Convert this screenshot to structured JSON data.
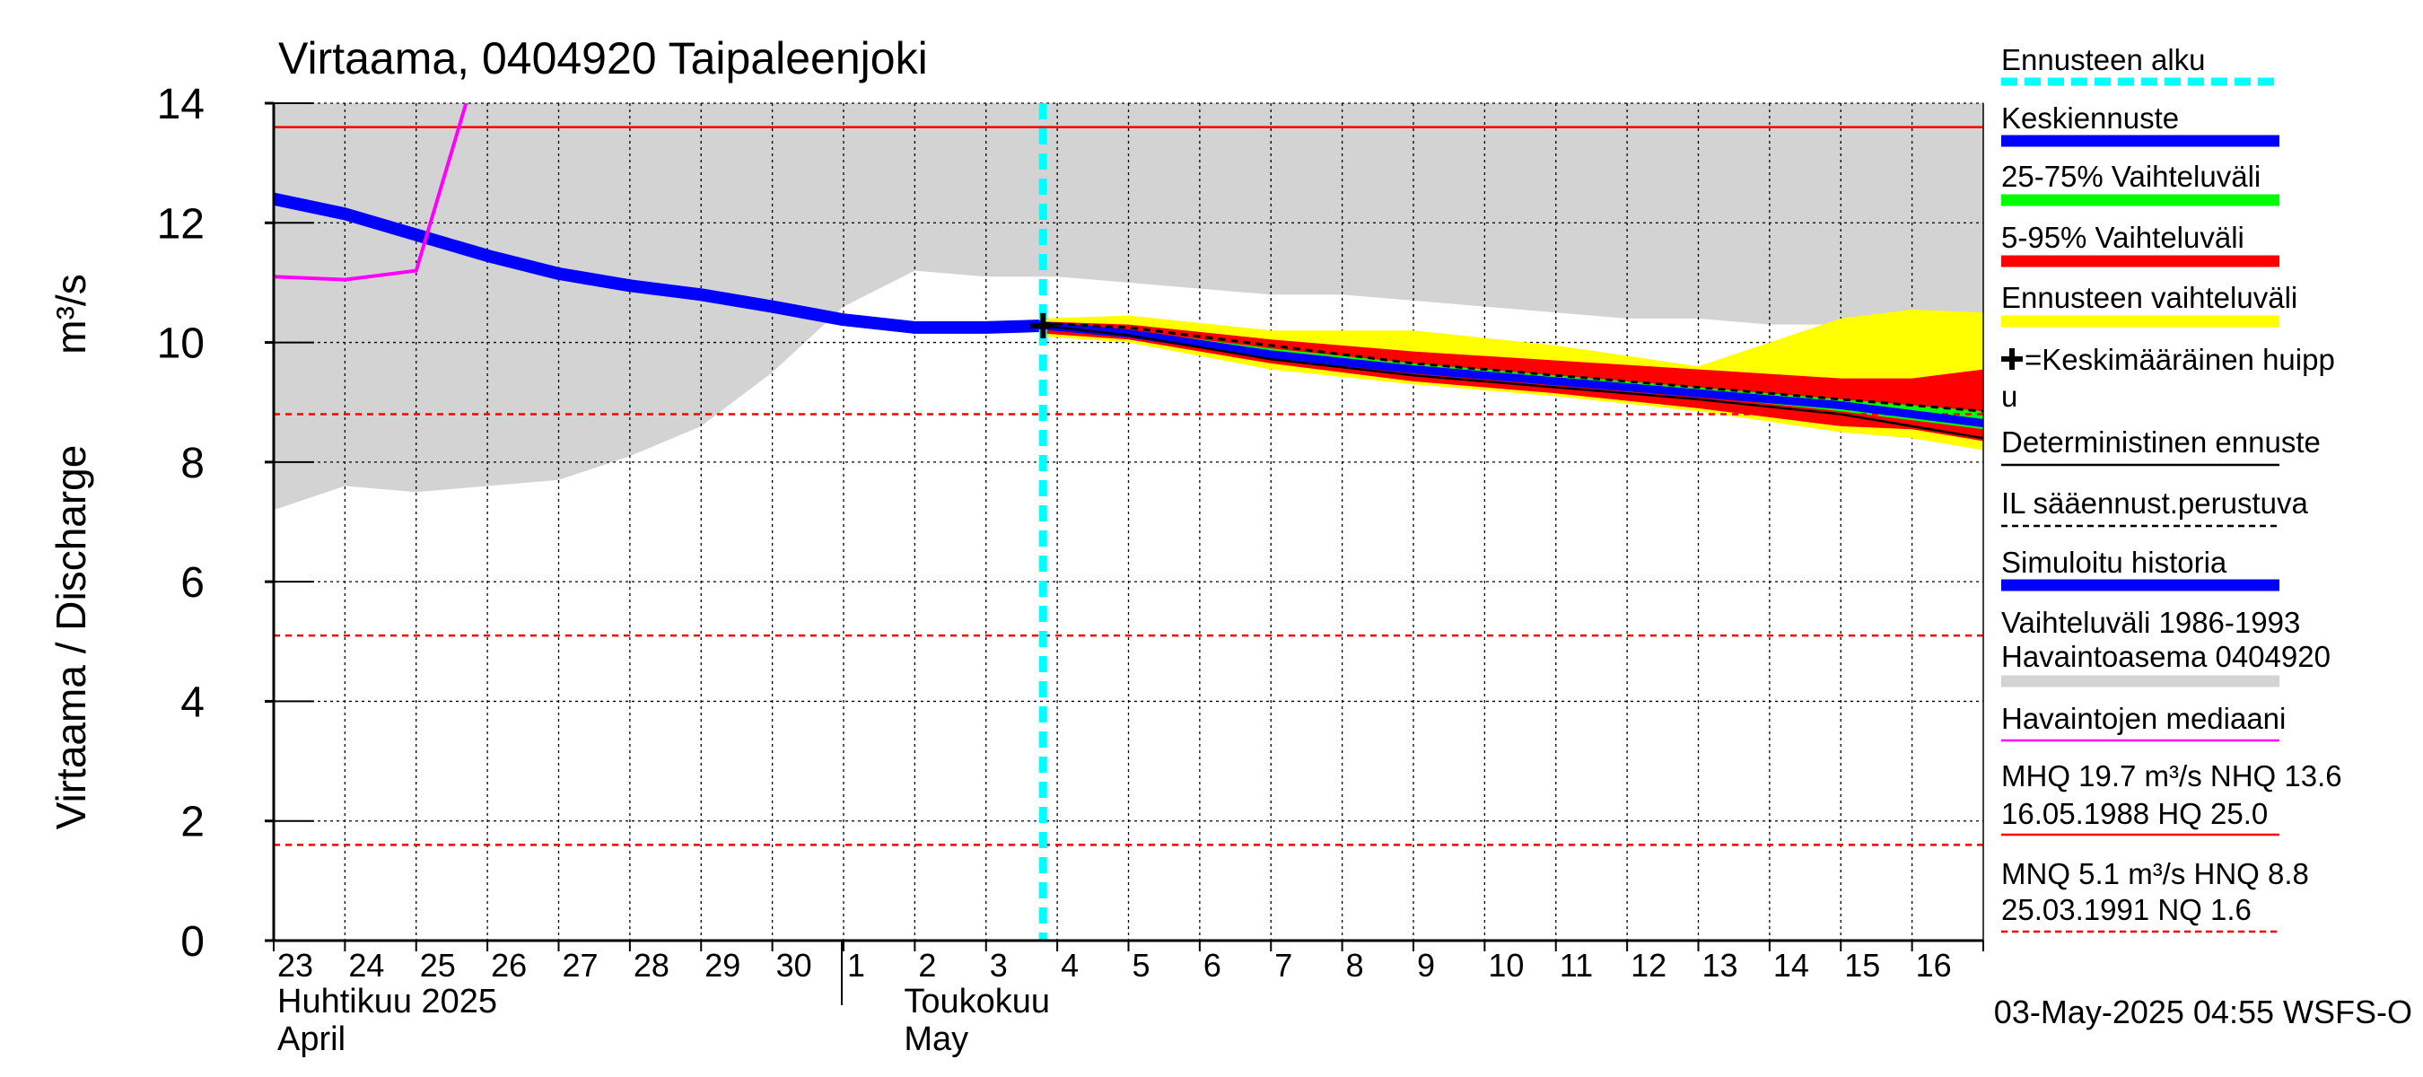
{
  "chart_data": {
    "type": "area",
    "title": "Virtaama, 0404920 Taipaleenjoki",
    "ylabel": "Virtaama / Discharge",
    "yunit": "m³/s",
    "ylim": [
      0,
      14
    ],
    "yticks": [
      "0",
      "2",
      "4",
      "6",
      "8",
      "10",
      "12",
      "14"
    ],
    "x_day_labels": [
      "23",
      "24",
      "25",
      "26",
      "27",
      "28",
      "29",
      "30",
      "1",
      "2",
      "3",
      "4",
      "5",
      "6",
      "7",
      "8",
      "9",
      "10",
      "11",
      "12",
      "13",
      "14",
      "15",
      "16"
    ],
    "x_month_labels": [
      {
        "fi": "Huhtikuu  2025",
        "en": "April"
      },
      {
        "fi": "Toukokuu",
        "en": "May"
      }
    ],
    "forecast_start_day": 10.8,
    "reference_lines": {
      "nhq": 13.6,
      "hnq": 8.8,
      "mnq": 5.1,
      "nq": 1.6
    },
    "history_band": {
      "x": [
        0,
        1,
        2,
        3,
        4,
        5,
        6,
        7,
        8,
        9,
        10,
        11,
        12,
        13,
        14,
        15,
        16,
        17,
        18,
        19,
        20,
        21,
        22,
        23,
        24
      ],
      "low": [
        7.2,
        7.6,
        7.5,
        7.6,
        7.7,
        8.1,
        8.6,
        9.5,
        10.6,
        11.2,
        11.1,
        11.1,
        11.0,
        10.9,
        10.8,
        10.8,
        10.7,
        10.6,
        10.5,
        10.4,
        10.4,
        10.3,
        10.3,
        10.3,
        10.3
      ],
      "high": [
        14,
        14,
        14,
        14,
        14,
        14,
        14,
        14,
        14,
        14,
        14,
        14,
        14,
        14,
        14,
        14,
        14,
        14,
        14,
        14,
        14,
        14,
        14,
        14,
        14
      ]
    },
    "median_observations": {
      "x": [
        0,
        1,
        2,
        2.75
      ],
      "y": [
        11.1,
        11.05,
        11.2,
        14.2
      ]
    },
    "simulated_history": {
      "x": [
        0,
        1,
        2,
        3,
        4,
        5,
        6,
        7,
        8,
        9,
        10,
        10.8
      ],
      "y": [
        12.4,
        12.15,
        11.8,
        11.45,
        11.15,
        10.95,
        10.8,
        10.6,
        10.38,
        10.25,
        10.25,
        10.28
      ]
    },
    "forecast": {
      "x": [
        10.8,
        12,
        14,
        16,
        18,
        20,
        22,
        23,
        24
      ],
      "full_high": [
        10.4,
        10.45,
        10.2,
        10.2,
        9.95,
        9.6,
        10.4,
        10.55,
        10.5
      ],
      "full_low": [
        10.1,
        10.0,
        9.55,
        9.3,
        9.1,
        8.85,
        8.5,
        8.4,
        8.2
      ],
      "p95": [
        10.35,
        10.3,
        10.05,
        9.85,
        9.7,
        9.55,
        9.4,
        9.4,
        9.55
      ],
      "p5": [
        10.15,
        10.05,
        9.65,
        9.35,
        9.15,
        8.9,
        8.6,
        8.55,
        8.35
      ],
      "p75": [
        10.32,
        10.2,
        9.9,
        9.65,
        9.45,
        9.25,
        9.05,
        8.95,
        8.85
      ],
      "p25": [
        10.22,
        10.1,
        9.75,
        9.5,
        9.3,
        9.1,
        8.85,
        8.7,
        8.55
      ],
      "mean": [
        10.28,
        10.15,
        9.8,
        9.55,
        9.35,
        9.15,
        8.95,
        8.8,
        8.65
      ],
      "deterministic": [
        10.28,
        10.12,
        9.72,
        9.45,
        9.25,
        9.05,
        8.8,
        8.6,
        8.4
      ],
      "il_weather": [
        10.32,
        10.25,
        9.95,
        9.65,
        9.45,
        9.25,
        9.05,
        8.95,
        8.85
      ]
    },
    "mean_peak": {
      "x": 10.8,
      "y": 10.28
    },
    "colors": {
      "history_band": "#d3d3d3",
      "median": "#ff00ff",
      "simulated": "#0000ff",
      "mean": "#0000ff",
      "p25_75": "#00ff00",
      "p5_95": "#ff0000",
      "full_range": "#ffff00",
      "deterministic": "#000000",
      "forecast_start": "#00ffff",
      "reference": "#ff0000",
      "grid": "#000000"
    }
  },
  "legend": [
    {
      "label": "Ennusteen alku",
      "color": "#00ffff",
      "style": "dash-thick"
    },
    {
      "label": "Keskiennuste",
      "color": "#0000ff",
      "style": "thick"
    },
    {
      "label": "25-75% Vaihteluväli",
      "color": "#00ff00",
      "style": "thick"
    },
    {
      "label": "5-95% Vaihteluväli",
      "color": "#ff0000",
      "style": "thick"
    },
    {
      "label": "Ennusteen vaihteluväli",
      "color": "#ffff00",
      "style": "thick"
    },
    {
      "label": "=Keskimääräinen huipp",
      "label2": "u",
      "color": "#000000",
      "style": "plus"
    },
    {
      "label": "Deterministinen ennuste",
      "color": "#000000",
      "style": "thin"
    },
    {
      "label": "IL sääennust.perustuva",
      "color": "#000000",
      "style": "dash-thin"
    },
    {
      "label": "Simuloitu historia",
      "color": "#0000ff",
      "style": "thick"
    },
    {
      "label": "Vaihteluväli 1986-1993",
      "label2": " Havaintoasema 0404920",
      "color": "#d3d3d3",
      "style": "thick"
    },
    {
      "label": "Havaintojen mediaani",
      "color": "#ff00ff",
      "style": "thin"
    },
    {
      "label": "MHQ 19.7 m³/s NHQ 13.6",
      "label2": "16.05.1988 HQ 25.0",
      "color": "#ff0000",
      "style": "thin"
    },
    {
      "label": "MNQ  5.1 m³/s HNQ  8.8",
      "label2": "25.03.1991 NQ  1.6",
      "color": "#ff0000",
      "style": "dash-thin"
    }
  ],
  "footer": "03-May-2025 04:55 WSFS-O"
}
